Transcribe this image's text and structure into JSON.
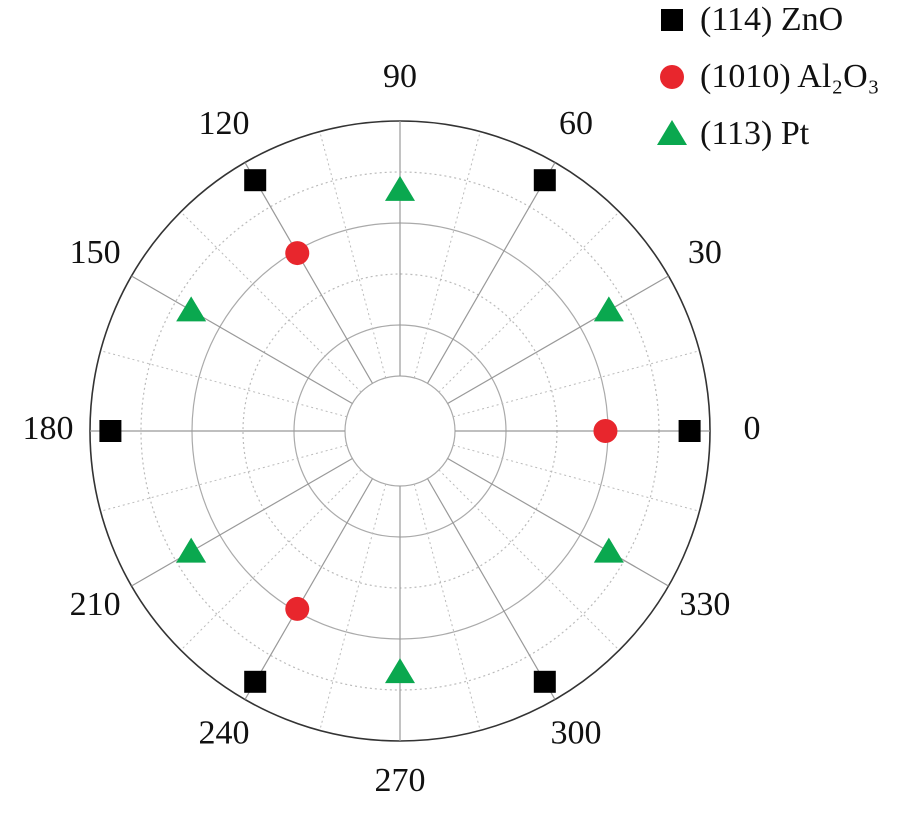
{
  "chart_data": {
    "type": "polar-scatter",
    "rlim": [
      0,
      100
    ],
    "thetaticks": [
      0,
      30,
      60,
      90,
      120,
      150,
      180,
      210,
      240,
      270,
      300,
      330
    ],
    "grid": true,
    "legend": "upper right",
    "series": [
      {
        "name": "(114) ZnO",
        "color": "#000000",
        "marker": "square",
        "theta": [
          0,
          60,
          120,
          180,
          240,
          300
        ],
        "r": [
          92,
          92,
          92,
          92,
          92,
          92
        ]
      },
      {
        "name": "(1010) Al₂O₃",
        "color": "#e8262d",
        "marker": "circle",
        "theta": [
          0,
          120,
          240
        ],
        "r": [
          59,
          59,
          59
        ]
      },
      {
        "name": "(113) Pt",
        "color": "#0aa84f",
        "marker": "triangle",
        "theta": [
          30,
          90,
          150,
          210,
          270,
          330
        ],
        "r": [
          73,
          73,
          73,
          73,
          73,
          73
        ]
      }
    ]
  }
}
